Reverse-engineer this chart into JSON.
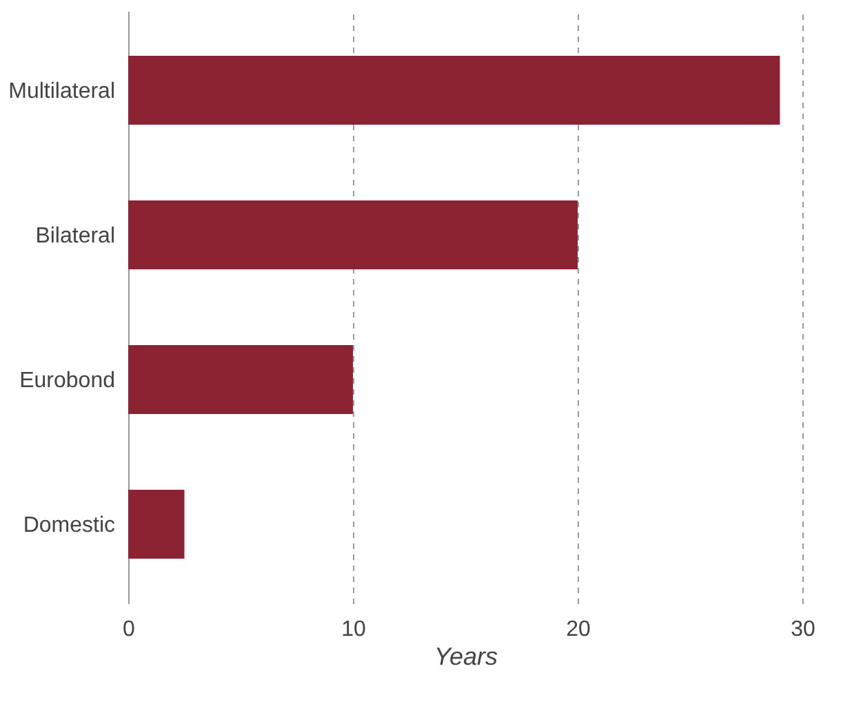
{
  "chart_data": {
    "type": "bar",
    "orientation": "horizontal",
    "categories": [
      "Multilateral",
      "Bilateral",
      "Eurobond",
      "Domestic"
    ],
    "values": [
      29,
      20,
      10,
      2.5
    ],
    "color": "#8b2332",
    "xlabel": "Years",
    "xlim": [
      0,
      30
    ],
    "xticks": [
      0,
      10,
      20,
      30
    ],
    "grid": "x"
  }
}
